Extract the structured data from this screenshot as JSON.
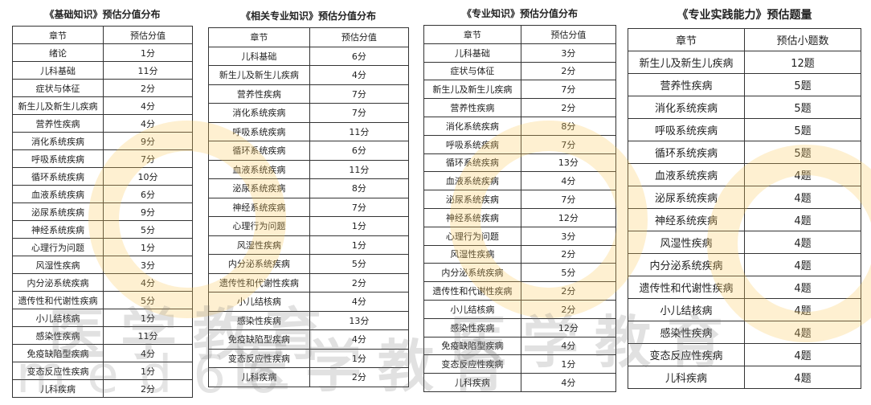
{
  "tables": [
    {
      "title": "《基础知识》预估分值分布",
      "headers": [
        "章节",
        "预估分值"
      ],
      "rows": [
        [
          "绪论",
          "1分"
        ],
        [
          "儿科基础",
          "11分"
        ],
        [
          "症状与体征",
          "2分"
        ],
        [
          "新生儿及新生儿疾病",
          "4分"
        ],
        [
          "营养性疾病",
          "4分"
        ],
        [
          "消化系统疾病",
          "9分"
        ],
        [
          "呼吸系统疾病",
          "7分"
        ],
        [
          "循环系统疾病",
          "10分"
        ],
        [
          "血液系统疾病",
          "6分"
        ],
        [
          "泌尿系统疾病",
          "9分"
        ],
        [
          "神经系统疾病",
          "5分"
        ],
        [
          "心理行为问题",
          "1分"
        ],
        [
          "风湿性疾病",
          "3分"
        ],
        [
          "内分泌系统疾病",
          "4分"
        ],
        [
          "遗传性和代谢性疾病",
          "5分"
        ],
        [
          "小儿结核病",
          "1分"
        ],
        [
          "感染性疾病",
          "11分"
        ],
        [
          "免疫缺陷型疾病",
          "4分"
        ],
        [
          "变态反应性疾病",
          "1分"
        ],
        [
          "儿科疾病",
          "2分"
        ]
      ]
    },
    {
      "title": "《相关专业知识》预估分值分布",
      "headers": [
        "章节",
        "预估分值"
      ],
      "rows": [
        [
          "儿科基础",
          "6分"
        ],
        [
          "新生儿及新生儿疾病",
          "4分"
        ],
        [
          "营养性疾病",
          "7分"
        ],
        [
          "消化系统疾病",
          "7分"
        ],
        [
          "呼吸系统疾病",
          "11分"
        ],
        [
          "循环系统疾病",
          "6分"
        ],
        [
          "血液系统疾病",
          "11分"
        ],
        [
          "泌尿系统疾病",
          "8分"
        ],
        [
          "神经系统疾病",
          "7分"
        ],
        [
          "心理行为问题",
          "1分"
        ],
        [
          "风湿性疾病",
          "1分"
        ],
        [
          "内分泌系统疾病",
          "5分"
        ],
        [
          "遗传性和代谢性疾病",
          "2分"
        ],
        [
          "小儿结核病",
          "4分"
        ],
        [
          "感染性疾病",
          "13分"
        ],
        [
          "免疫缺陷型疾病",
          "4分"
        ],
        [
          "变态反应性疾病",
          "1分"
        ],
        [
          "儿科疾病",
          "2分"
        ]
      ]
    },
    {
      "title": "《专业知识》预估分值分布",
      "headers": [
        "章节",
        "预估分值"
      ],
      "rows": [
        [
          "儿科基础",
          "3分"
        ],
        [
          "症状与体征",
          "2分"
        ],
        [
          "新生儿及新生儿疾病",
          "7分"
        ],
        [
          "营养性疾病",
          "2分"
        ],
        [
          "消化系统疾病",
          "8分"
        ],
        [
          "呼吸系统疾病",
          "7分"
        ],
        [
          "循环系统疾病",
          "13分"
        ],
        [
          "血液系统疾病",
          "4分"
        ],
        [
          "泌尿系统疾病",
          "7分"
        ],
        [
          "神经系统疾病",
          "12分"
        ],
        [
          "心理行为问题",
          "3分"
        ],
        [
          "风湿性疾病",
          "2分"
        ],
        [
          "内分泌系统疾病",
          "5分"
        ],
        [
          "遗传性和代谢性疾病",
          "2分"
        ],
        [
          "小儿结核病",
          "2分"
        ],
        [
          "感染性疾病",
          "12分"
        ],
        [
          "免疫缺陷型疾病",
          "4分"
        ],
        [
          "变态反应性疾病",
          "1分"
        ],
        [
          "儿科疾病",
          "4分"
        ]
      ]
    },
    {
      "title": "《专业实践能力》预估题量",
      "headers": [
        "章节",
        "预估小题数"
      ],
      "rows": [
        [
          "新生儿及新生儿疾病",
          "12题"
        ],
        [
          "营养性疾病",
          "5题"
        ],
        [
          "消化系统疾病",
          "5题"
        ],
        [
          "呼吸系统疾病",
          "5题"
        ],
        [
          "循环系统疾病",
          "5题"
        ],
        [
          "血液系统疾病",
          "4题"
        ],
        [
          "泌尿系统疾病",
          "4题"
        ],
        [
          "神经系统疾病",
          "4题"
        ],
        [
          "风湿性疾病",
          "4题"
        ],
        [
          "内分泌系统疾病",
          "4题"
        ],
        [
          "遗传性和代谢性疾病",
          "4题"
        ],
        [
          "小儿结核病",
          "4题"
        ],
        [
          "感染性疾病",
          "4题"
        ],
        [
          "变态反应性疾病",
          "4题"
        ],
        [
          "儿科疾病",
          "4题"
        ]
      ]
    }
  ],
  "watermark": {
    "text": "医学教育",
    "url": "med66",
    "logo_color": "#f8c55a"
  }
}
